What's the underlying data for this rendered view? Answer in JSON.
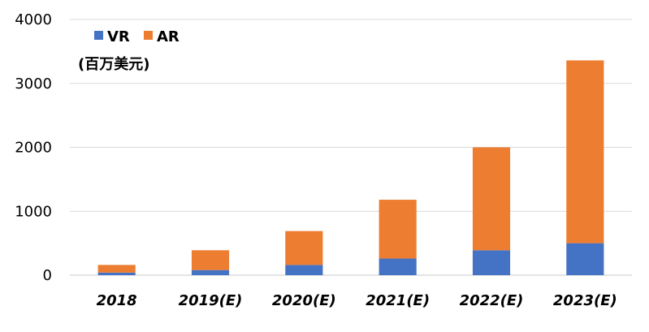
{
  "chart_data": {
    "type": "bar",
    "stacked": true,
    "categories": [
      "2018",
      "2019(E)",
      "2020(E)",
      "2021(E)",
      "2022(E)",
      "2023(E)"
    ],
    "series": [
      {
        "name": "VR",
        "color": "#4472C4",
        "values": [
          40,
          80,
          160,
          260,
          390,
          500
        ]
      },
      {
        "name": "AR",
        "color": "#ED7D31",
        "values": [
          120,
          310,
          530,
          920,
          1610,
          2860
        ]
      }
    ],
    "unit_label": "(百万美元)",
    "ylim": [
      0,
      4000
    ],
    "yticks": [
      0,
      1000,
      2000,
      3000,
      4000
    ],
    "grid": true,
    "legend_position": "top-left"
  }
}
